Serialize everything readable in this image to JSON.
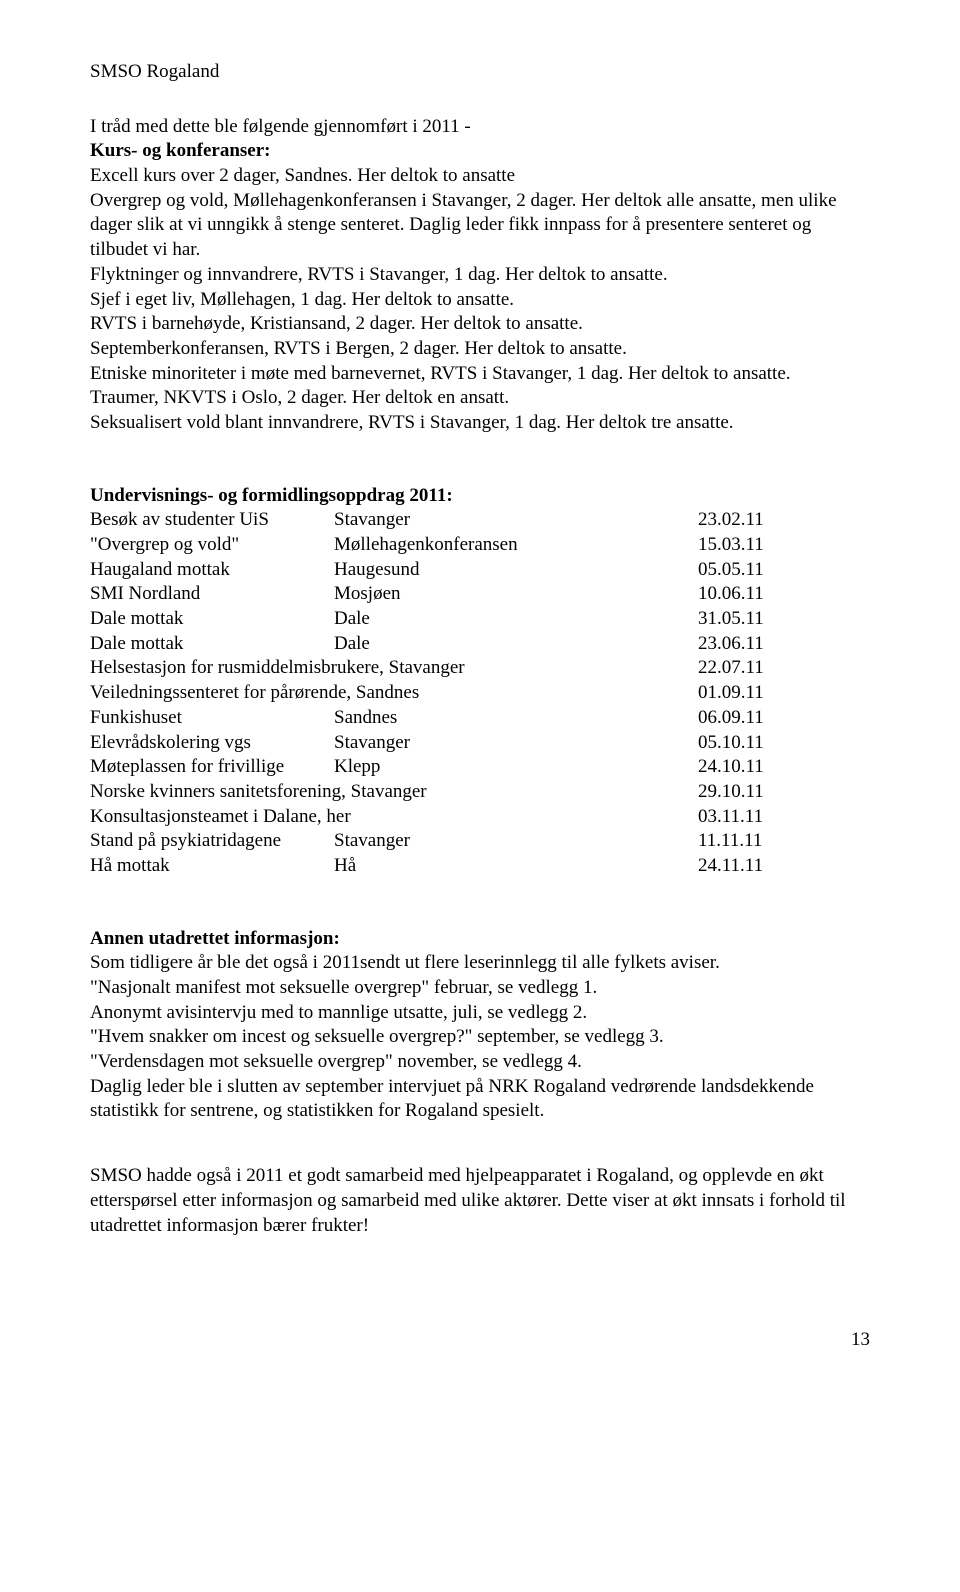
{
  "header": "SMSO Rogaland",
  "intro": "I tråd med dette ble følgende gjennomført i 2011 -",
  "kurs": {
    "heading": "Kurs- og konferanser:",
    "body": "Excell kurs over 2 dager, Sandnes. Her deltok to ansatte\nOvergrep og vold, Møllehagenkonferansen i Stavanger, 2 dager. Her deltok alle ansatte, men ulike dager slik at vi unngikk å stenge senteret. Daglig leder fikk innpass for å presentere senteret og tilbudet vi har.\nFlyktninger og innvandrere, RVTS i Stavanger, 1 dag. Her deltok to ansatte.\nSjef i eget liv, Møllehagen, 1 dag. Her deltok to ansatte.\nRVTS i barnehøyde, Kristiansand, 2 dager. Her deltok to ansatte.\nSeptemberkonferansen, RVTS i Bergen, 2 dager. Her deltok to ansatte.\nEtniske minoriteter i møte med barnevernet, RVTS i Stavanger, 1 dag. Her deltok to ansatte.\nTraumer, NKVTS i Oslo, 2 dager. Her deltok en ansatt.\nSeksualisert vold blant innvandrere, RVTS i Stavanger, 1 dag. Her deltok tre ansatte."
  },
  "undervisning": {
    "heading": "Undervisnings- og formidlingsoppdrag 2011:",
    "rows": [
      {
        "c1": "Besøk av studenter UiS",
        "c2": "Stavanger",
        "c3": "23.02.11"
      },
      {
        "c1": "\"Overgrep og vold\"",
        "c2": "Møllehagenkonferansen",
        "c3": "15.03.11"
      },
      {
        "c1": "Haugaland mottak",
        "c2": "Haugesund",
        "c3": "05.05.11"
      },
      {
        "c1": "SMI Nordland",
        "c2": "Mosjøen",
        "c3": "10.06.11"
      },
      {
        "c1": "Dale mottak",
        "c2": "Dale",
        "c3": "31.05.11"
      },
      {
        "c1": "Dale mottak",
        "c2": "Dale",
        "c3": "23.06.11"
      },
      {
        "c1": "Helsestasjon for rusmiddelmisbrukere, Stavanger",
        "c2": "",
        "c3": "22.07.11",
        "wide": true
      },
      {
        "c1": "Veiledningssenteret for pårørende, Sandnes",
        "c2": "",
        "c3": "01.09.11",
        "wide": true
      },
      {
        "c1": "Funkishuset",
        "c2": "Sandnes",
        "c3": "06.09.11"
      },
      {
        "c1": "Elevrådskolering vgs",
        "c2": "Stavanger",
        "c3": "05.10.11"
      },
      {
        "c1": "Møteplassen for frivillige",
        "c2": "Klepp",
        "c3": "24.10.11"
      },
      {
        "c1": "Norske kvinners sanitetsforening, Stavanger",
        "c2": "",
        "c3": "29.10.11",
        "wide": true
      },
      {
        "c1": "Konsultasjonsteamet i Dalane, her",
        "c2": "",
        "c3": "03.11.11",
        "wide": true
      },
      {
        "c1": "Stand på psykiatridagene",
        "c2": "Stavanger",
        "c3": "11.11.11"
      },
      {
        "c1": "Hå mottak",
        "c2": "Hå",
        "c3": "24.11.11"
      }
    ]
  },
  "annen": {
    "heading": "Annen utadrettet informasjon:",
    "lines": [
      "Som tidligere år ble det også i 2011sendt ut flere leserinnlegg til alle fylkets aviser.",
      "\"Nasjonalt manifest mot seksuelle overgrep\" februar, se vedlegg 1.",
      "Anonymt avisintervju med to mannlige utsatte, juli, se vedlegg 2.",
      "\"Hvem snakker om incest og seksuelle overgrep?\" september, se vedlegg 3.",
      "\"Verdensdagen mot seksuelle overgrep\" november, se vedlegg 4.",
      "Daglig leder ble i slutten av september intervjuet på NRK Rogaland vedrørende landsdekkende statistikk for sentrene, og statistikken for Rogaland spesielt."
    ]
  },
  "closing": "SMSO hadde også i 2011 et godt samarbeid med hjelpeapparatet i Rogaland, og opplevde en økt etterspørsel etter informasjon og samarbeid med ulike aktører. Dette viser at økt innsats i forhold til utadrettet informasjon bærer frukter!",
  "page_number": "13"
}
